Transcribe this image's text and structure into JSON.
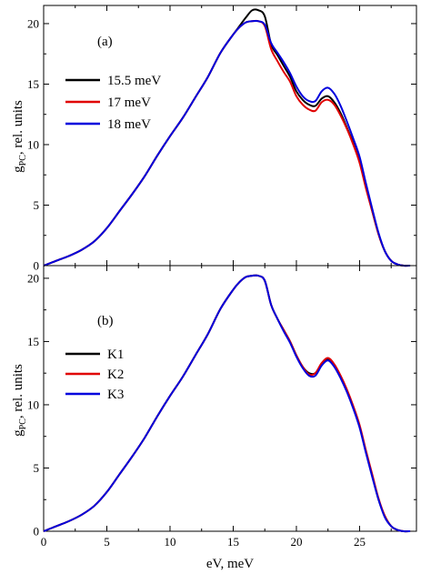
{
  "chart_data": [
    {
      "type": "line",
      "panel_label": "(a)",
      "xlabel": "eV, meV",
      "ylabel_main": "g",
      "ylabel_sub": "PC",
      "ylabel_rest": ", rel. units",
      "xlim": [
        0,
        29.5
      ],
      "ylim": [
        0,
        21.5
      ],
      "xticks": [
        0,
        5,
        10,
        15,
        20,
        25
      ],
      "yticks": [
        0,
        5,
        10,
        15,
        20
      ],
      "legend_position": "center-left",
      "series": [
        {
          "name": "15.5 meV",
          "color": "#000000",
          "x": [
            0,
            1,
            2,
            3,
            4,
            5,
            6,
            7,
            8,
            9,
            10,
            11,
            12,
            13,
            14,
            15,
            15.5,
            16,
            16.5,
            17,
            17.5,
            18,
            18.5,
            19,
            19.5,
            20,
            20.5,
            21,
            21.5,
            22,
            22.5,
            23,
            23.5,
            24,
            24.5,
            25,
            25.5,
            26,
            26.5,
            27,
            27.5,
            28,
            28.5,
            29
          ],
          "y": [
            0,
            0.4,
            0.8,
            1.3,
            2.0,
            3.1,
            4.5,
            5.9,
            7.4,
            9.1,
            10.7,
            12.2,
            13.9,
            15.6,
            17.6,
            19.1,
            19.8,
            20.5,
            21.1,
            21.1,
            20.6,
            18.3,
            17.4,
            16.5,
            15.6,
            14.4,
            13.7,
            13.3,
            13.2,
            13.8,
            14.0,
            13.5,
            12.6,
            11.4,
            10.1,
            8.6,
            6.5,
            4.5,
            2.6,
            1.2,
            0.4,
            0.1,
            0,
            0
          ]
        },
        {
          "name": "17 meV",
          "color": "#e00000",
          "x": [
            0,
            1,
            2,
            3,
            4,
            5,
            6,
            7,
            8,
            9,
            10,
            11,
            12,
            13,
            14,
            15,
            15.5,
            16,
            16.5,
            17,
            17.5,
            18,
            18.5,
            19,
            19.5,
            20,
            20.5,
            21,
            21.5,
            22,
            22.5,
            23,
            23.5,
            24,
            24.5,
            25,
            25.5,
            26,
            26.5,
            27,
            27.5,
            28,
            28.5,
            29
          ],
          "y": [
            0,
            0.4,
            0.8,
            1.3,
            2.0,
            3.1,
            4.5,
            5.9,
            7.4,
            9.1,
            10.7,
            12.2,
            13.9,
            15.6,
            17.6,
            19.1,
            19.7,
            20.1,
            20.2,
            20.2,
            19.8,
            17.9,
            16.9,
            16.0,
            15.2,
            14.0,
            13.3,
            12.9,
            12.8,
            13.5,
            13.7,
            13.3,
            12.4,
            11.3,
            10.0,
            8.5,
            6.4,
            4.5,
            2.6,
            1.2,
            0.4,
            0.1,
            0,
            0
          ]
        },
        {
          "name": "18 meV",
          "color": "#0000dd",
          "x": [
            0,
            1,
            2,
            3,
            4,
            5,
            6,
            7,
            8,
            9,
            10,
            11,
            12,
            13,
            14,
            15,
            15.5,
            16,
            16.5,
            17,
            17.5,
            18,
            18.5,
            19,
            19.5,
            20,
            20.5,
            21,
            21.5,
            22,
            22.5,
            23,
            23.5,
            24,
            24.5,
            25,
            25.5,
            26,
            26.5,
            27,
            27.5,
            28,
            28.5,
            29
          ],
          "y": [
            0,
            0.4,
            0.8,
            1.3,
            2.0,
            3.1,
            4.5,
            5.9,
            7.4,
            9.1,
            10.7,
            12.2,
            13.9,
            15.6,
            17.6,
            19.1,
            19.7,
            20.1,
            20.2,
            20.2,
            19.9,
            18.4,
            17.6,
            16.8,
            15.9,
            14.8,
            14.0,
            13.6,
            13.6,
            14.4,
            14.7,
            14.2,
            13.2,
            11.9,
            10.5,
            9.0,
            6.8,
            4.7,
            2.7,
            1.2,
            0.4,
            0.1,
            0,
            0
          ]
        }
      ]
    },
    {
      "type": "line",
      "panel_label": "(b)",
      "xlabel": "eV, meV",
      "ylabel_main": "g",
      "ylabel_sub": "PC",
      "ylabel_rest": ", rel. units",
      "xlim": [
        0,
        29.5
      ],
      "ylim": [
        0,
        21
      ],
      "xticks": [
        0,
        5,
        10,
        15,
        20,
        25
      ],
      "yticks": [
        0,
        5,
        10,
        15,
        20
      ],
      "legend_position": "center-left",
      "series": [
        {
          "name": "K1",
          "color": "#000000",
          "x": [
            0,
            1,
            2,
            3,
            4,
            5,
            6,
            7,
            8,
            9,
            10,
            11,
            12,
            13,
            14,
            15,
            15.5,
            16,
            16.5,
            17,
            17.5,
            18,
            18.5,
            19,
            19.5,
            20,
            20.5,
            21,
            21.5,
            22,
            22.5,
            23,
            23.5,
            24,
            24.5,
            25,
            25.5,
            26,
            26.5,
            27,
            27.5,
            28,
            28.5,
            29
          ],
          "y": [
            0,
            0.4,
            0.8,
            1.3,
            2.0,
            3.1,
            4.5,
            5.9,
            7.4,
            9.1,
            10.7,
            12.2,
            13.9,
            15.6,
            17.6,
            19.1,
            19.7,
            20.1,
            20.2,
            20.2,
            19.8,
            17.9,
            16.8,
            15.9,
            15.0,
            13.9,
            13.0,
            12.5,
            12.5,
            13.2,
            13.6,
            13.1,
            12.2,
            11.1,
            9.8,
            8.3,
            6.3,
            4.4,
            2.5,
            1.2,
            0.4,
            0.1,
            0,
            0
          ]
        },
        {
          "name": "K2",
          "color": "#e00000",
          "x": [
            0,
            1,
            2,
            3,
            4,
            5,
            6,
            7,
            8,
            9,
            10,
            11,
            12,
            13,
            14,
            15,
            15.5,
            16,
            16.5,
            17,
            17.5,
            18,
            18.5,
            19,
            19.5,
            20,
            20.5,
            21,
            21.5,
            22,
            22.5,
            23,
            23.5,
            24,
            24.5,
            25,
            25.5,
            26,
            26.5,
            27,
            27.5,
            28,
            28.5,
            29
          ],
          "y": [
            0,
            0.4,
            0.8,
            1.3,
            2.0,
            3.1,
            4.5,
            5.9,
            7.4,
            9.1,
            10.7,
            12.2,
            13.9,
            15.6,
            17.6,
            19.1,
            19.7,
            20.1,
            20.2,
            20.2,
            19.8,
            17.9,
            16.8,
            15.9,
            15.0,
            13.9,
            13.0,
            12.4,
            12.5,
            13.3,
            13.7,
            13.2,
            12.3,
            11.2,
            9.9,
            8.4,
            6.4,
            4.5,
            2.6,
            1.2,
            0.4,
            0.1,
            0,
            0
          ]
        },
        {
          "name": "K3",
          "color": "#0000dd",
          "x": [
            0,
            1,
            2,
            3,
            4,
            5,
            6,
            7,
            8,
            9,
            10,
            11,
            12,
            13,
            14,
            15,
            15.5,
            16,
            16.5,
            17,
            17.5,
            18,
            18.5,
            19,
            19.5,
            20,
            20.5,
            21,
            21.5,
            22,
            22.5,
            23,
            23.5,
            24,
            24.5,
            25,
            25.5,
            26,
            26.5,
            27,
            27.5,
            28,
            28.5,
            29
          ],
          "y": [
            0,
            0.4,
            0.8,
            1.3,
            2.0,
            3.1,
            4.5,
            5.9,
            7.4,
            9.1,
            10.7,
            12.2,
            13.9,
            15.6,
            17.6,
            19.1,
            19.7,
            20.1,
            20.2,
            20.2,
            19.8,
            17.9,
            16.8,
            15.8,
            14.9,
            13.8,
            12.9,
            12.3,
            12.3,
            13.1,
            13.5,
            13.0,
            12.1,
            11.0,
            9.7,
            8.2,
            6.2,
            4.3,
            2.5,
            1.1,
            0.4,
            0.1,
            0,
            0
          ]
        }
      ]
    }
  ]
}
